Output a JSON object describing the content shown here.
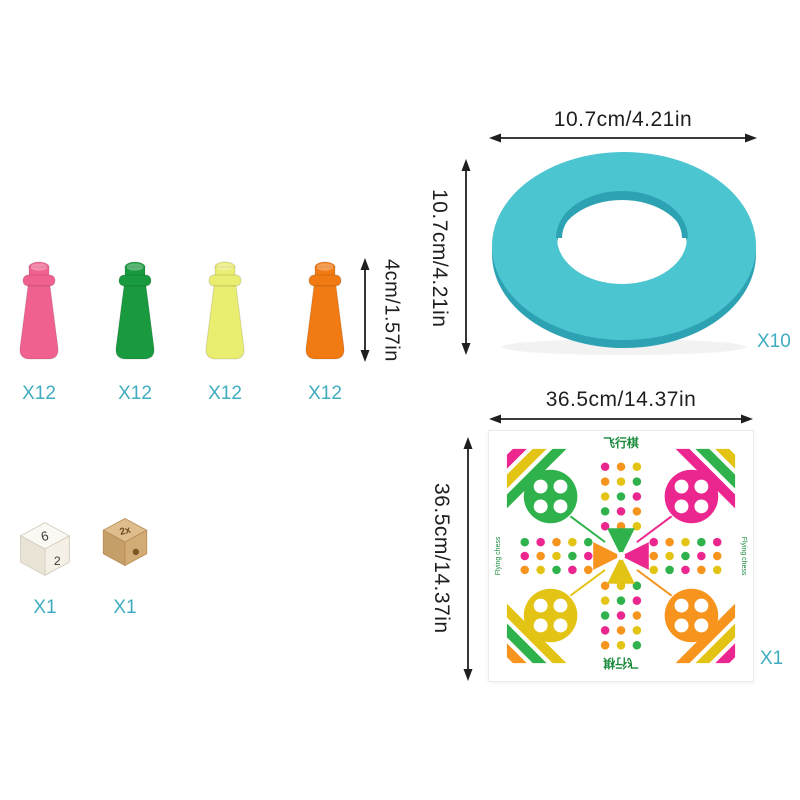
{
  "ring": {
    "width_label": "10.7cm/4.21in",
    "height_label": "10.7cm/4.21in",
    "count": "X10",
    "color": "#4bc5cf",
    "color_dark": "#2da2b2"
  },
  "pawns": {
    "height_label": "4cm/1.57in",
    "items": [
      {
        "name": "pink-pawn",
        "color": "#f0618f",
        "count": "X12"
      },
      {
        "name": "green-pawn",
        "color": "#199a3f",
        "count": "X12"
      },
      {
        "name": "yellow-pawn",
        "color": "#e9ed70",
        "count": "X12"
      },
      {
        "name": "orange-pawn",
        "color": "#f27a12",
        "count": "X12"
      }
    ]
  },
  "dice": {
    "white_die": {
      "top_face": "6",
      "front_face": "2",
      "count": "X1"
    },
    "wooden_die": {
      "top_face": "2x",
      "count": "X1"
    }
  },
  "board": {
    "width_label": "36.5cm/14.37in",
    "height_label": "36.5cm/14.37in",
    "count": "X1",
    "title_top": "飞行棋",
    "title_bottom": "飞行棋",
    "side_text_left": "Flying chess",
    "side_text_right": "Flying chess",
    "colors": {
      "green": "#2fb24c",
      "pink": "#ec268f",
      "orange": "#f7941e",
      "yellow": "#e3c414"
    }
  }
}
